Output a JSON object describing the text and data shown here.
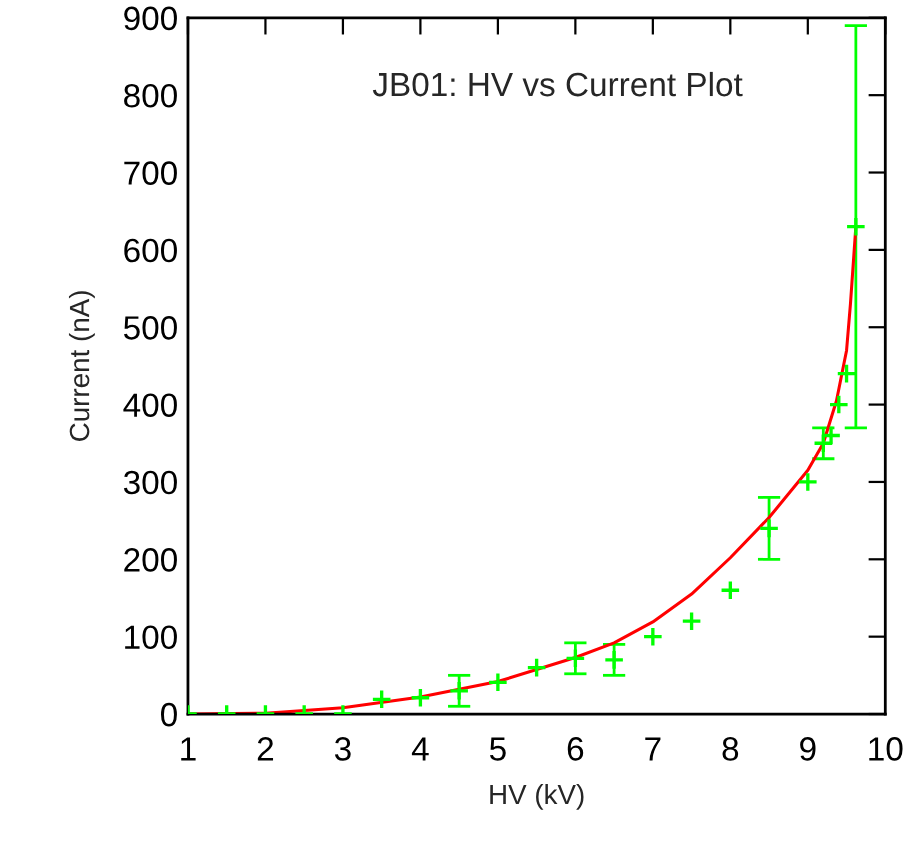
{
  "chart_data": {
    "type": "scatter",
    "title": "JB01: HV vs Current Plot",
    "xlabel": "HV (kV)",
    "ylabel": "Current (nA)",
    "xlim": [
      1,
      10
    ],
    "xticks": [
      1,
      2,
      3,
      4,
      5,
      6,
      7,
      8,
      9,
      10
    ],
    "ylim": [
      0,
      900
    ],
    "yticks": [
      0,
      100,
      200,
      300,
      400,
      500,
      600,
      700,
      800,
      900
    ],
    "grid": false,
    "marker": "cross",
    "series": [
      {
        "color": "#00ff00",
        "x": [
          1,
          1.5,
          2,
          2.5,
          3,
          3.5,
          4,
          4.5,
          5,
          5.5,
          6,
          6.5,
          7,
          7.5,
          8,
          8.5,
          9,
          9.2,
          9.3,
          9.4,
          9.5,
          9.62
        ],
        "values": [
          0,
          0,
          0,
          0,
          0,
          19,
          21,
          30,
          41,
          60,
          72,
          70,
          100,
          120,
          160,
          240,
          300,
          350,
          360,
          400,
          440,
          630
        ],
        "errors": [
          null,
          null,
          null,
          null,
          null,
          null,
          null,
          20,
          null,
          null,
          20,
          20,
          null,
          null,
          null,
          40,
          null,
          20,
          null,
          null,
          null,
          [
            370,
            890
          ]
        ]
      },
      {
        "type": "line",
        "color": "#ff0000",
        "marker": "none",
        "x": [
          1,
          2,
          3,
          4,
          5,
          6,
          6.5,
          7,
          7.5,
          8,
          8.5,
          9,
          9.2,
          9.37,
          9.5,
          9.55,
          9.62
        ],
        "values": [
          0,
          1,
          8,
          22,
          42,
          73,
          92,
          119,
          155,
          202,
          254,
          315,
          350,
          405,
          470,
          530,
          630
        ]
      }
    ]
  }
}
